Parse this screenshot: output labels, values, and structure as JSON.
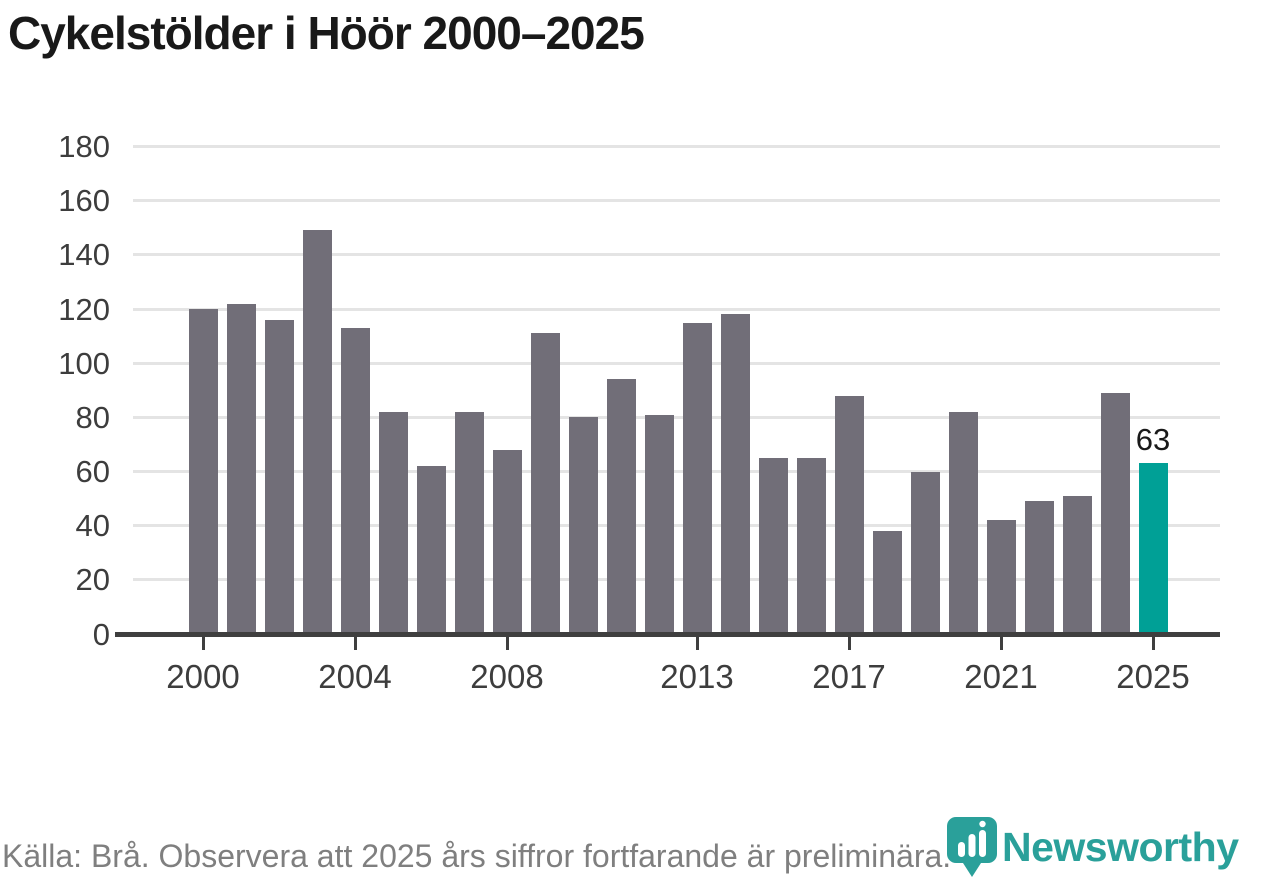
{
  "title": "Cykelstölder i Höör 2000–2025",
  "footer": {
    "source_text": "Källa: Brå. Observera att 2025 års siffror fortfarande är preliminära."
  },
  "logo": {
    "text": "Newsworthy"
  },
  "colors": {
    "bar": "#716e78",
    "highlight": "#00a096",
    "gridline": "#e4e4e4",
    "axis": "#3f3f3f",
    "tick_label": "#3d3d3d",
    "title": "#191919",
    "footer_text": "#7f7f7f",
    "logo": "#2aa09a"
  },
  "chart_data": {
    "type": "bar",
    "title": "Cykelstölder i Höör 2000–2025",
    "xlabel": "",
    "ylabel": "",
    "ylim": [
      0,
      180
    ],
    "yticks": [
      0,
      20,
      40,
      60,
      80,
      100,
      120,
      140,
      160,
      180
    ],
    "grid": "horizontal",
    "legend_position": "none",
    "x": [
      2000,
      2001,
      2002,
      2003,
      2004,
      2005,
      2006,
      2007,
      2008,
      2009,
      2010,
      2011,
      2012,
      2013,
      2014,
      2015,
      2016,
      2017,
      2018,
      2019,
      2020,
      2021,
      2022,
      2023,
      2024,
      2025
    ],
    "values": [
      120,
      122,
      116,
      149,
      113,
      82,
      62,
      82,
      68,
      111,
      80,
      94,
      81,
      115,
      118,
      65,
      65,
      88,
      38,
      60,
      82,
      42,
      49,
      51,
      89,
      63
    ],
    "highlight_year": 2025,
    "xtick_years": [
      2000,
      2004,
      2008,
      2013,
      2017,
      2021,
      2025
    ],
    "xtick_labels": [
      "2000",
      "2004",
      "2008",
      "2013",
      "2017",
      "2021",
      "2025"
    ],
    "value_labels": [
      {
        "year": 2025,
        "label": "63"
      }
    ]
  }
}
